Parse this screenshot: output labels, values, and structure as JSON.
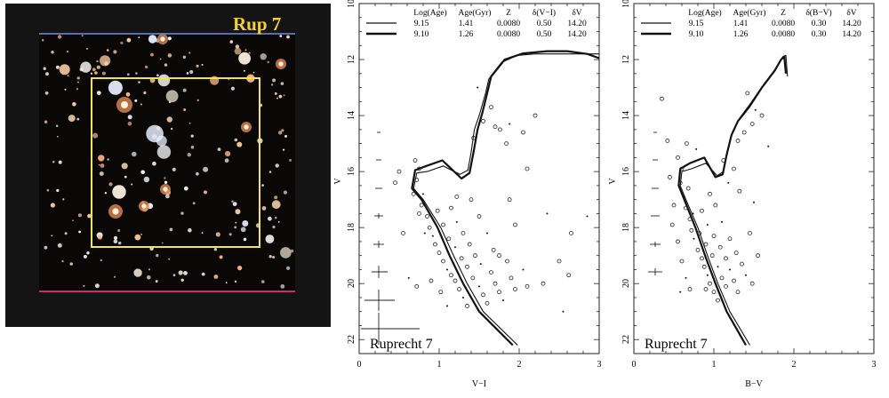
{
  "image_panel": {
    "label": "Rup 7",
    "label_color": "#f2d22e",
    "box_color": "#f2e640",
    "background": "#141414"
  },
  "cmd_panels": [
    {
      "cluster_label": "Ruprecht 7",
      "xlabel": "V−I",
      "ylabel": "V",
      "x_ticks": [
        "0",
        "1",
        "2",
        "3"
      ],
      "y_ticks": [
        "10",
        "12",
        "14",
        "16",
        "18",
        "20",
        "22"
      ],
      "legend_header": [
        "Log(Age)",
        "Age(Gyr)",
        "Z",
        "δ(V−I)",
        "δV"
      ],
      "legend_rows": [
        [
          "9.15",
          "1.41",
          "0.0080",
          "0.50",
          "14.20"
        ],
        [
          "9.10",
          "1.26",
          "0.0080",
          "0.50",
          "14.20"
        ]
      ]
    },
    {
      "cluster_label": "Ruprecht 7",
      "xlabel": "B−V",
      "ylabel": "V",
      "x_ticks": [
        "0",
        "1",
        "2",
        "3"
      ],
      "y_ticks": [
        "10",
        "12",
        "14",
        "16",
        "18",
        "20",
        "22"
      ],
      "legend_header": [
        "Log(Age)",
        "Age(Gyr)",
        "Z",
        "δ(B−V)",
        "δV"
      ],
      "legend_rows": [
        [
          "9.15",
          "1.41",
          "0.0080",
          "0.30",
          "14.20"
        ],
        [
          "9.10",
          "1.26",
          "0.0080",
          "0.30",
          "14.20"
        ]
      ]
    }
  ],
  "chart_data": [
    {
      "type": "scatter",
      "xlabel": "V−I",
      "ylabel": "V",
      "xlim": [
        0,
        3
      ],
      "ylim": [
        10,
        22.5
      ],
      "y_inverted": true,
      "series": [
        {
          "name": "9.15",
          "x": [
            1.98,
            1.55,
            1.35,
            1.18,
            1.02,
            0.8,
            0.68,
            0.72,
            0.85,
            1.05,
            1.26,
            1.36,
            1.4,
            1.44,
            1.5,
            1.58,
            1.62,
            1.78,
            1.98,
            2.2,
            2.45,
            2.7,
            3.0
          ],
          "y": [
            22.2,
            21.0,
            20.0,
            19.0,
            18.0,
            17.0,
            16.6,
            16.05,
            16.0,
            15.8,
            16.1,
            15.95,
            15.3,
            14.5,
            14.0,
            13.2,
            12.7,
            12.1,
            11.85,
            11.8,
            11.8,
            11.8,
            11.8
          ]
        },
        {
          "name": "9.10",
          "x": [
            1.92,
            1.5,
            1.3,
            1.13,
            0.98,
            0.78,
            0.66,
            0.7,
            0.84,
            1.04,
            1.28,
            1.38,
            1.43,
            1.48,
            1.54,
            1.6,
            1.65,
            1.82,
            2.05,
            2.35,
            2.6,
            2.85,
            3.0
          ],
          "y": [
            22.2,
            21.0,
            20.0,
            19.0,
            18.0,
            17.0,
            16.6,
            15.95,
            15.8,
            15.6,
            16.25,
            16.05,
            15.3,
            14.5,
            13.9,
            13.2,
            12.6,
            12.0,
            11.78,
            11.7,
            11.7,
            11.8,
            11.95
          ]
        },
        {
          "name": "stars",
          "points": [
            [
              0.7,
              15.6
            ],
            [
              0.75,
              15.9
            ],
            [
              0.72,
              16.3
            ],
            [
              0.8,
              16.8
            ],
            [
              0.78,
              17.2
            ],
            [
              0.85,
              17.6
            ],
            [
              0.88,
              18.0
            ],
            [
              0.92,
              18.3
            ],
            [
              0.95,
              18.6
            ],
            [
              1.0,
              18.9
            ],
            [
              1.05,
              19.2
            ],
            [
              1.1,
              19.5
            ],
            [
              1.15,
              19.7
            ],
            [
              1.2,
              19.9
            ],
            [
              1.25,
              20.2
            ],
            [
              1.3,
              20.5
            ],
            [
              1.35,
              20.8
            ],
            [
              0.68,
              16.8
            ],
            [
              0.75,
              17.5
            ],
            [
              0.82,
              18.2
            ],
            [
              0.98,
              17.4
            ],
            [
              1.05,
              17.9
            ],
            [
              1.12,
              18.4
            ],
            [
              1.2,
              18.7
            ],
            [
              1.28,
              19.1
            ],
            [
              1.35,
              19.4
            ],
            [
              1.42,
              19.8
            ],
            [
              1.5,
              20.1
            ],
            [
              1.55,
              20.4
            ],
            [
              1.6,
              20.7
            ],
            [
              1.15,
              17.3
            ],
            [
              1.22,
              17.8
            ],
            [
              1.3,
              18.2
            ],
            [
              1.38,
              18.6
            ],
            [
              1.45,
              19.0
            ],
            [
              1.52,
              19.3
            ],
            [
              1.65,
              19.6
            ],
            [
              1.7,
              20.0
            ],
            [
              1.75,
              20.3
            ],
            [
              1.8,
              20.6
            ],
            [
              1.85,
              19.2
            ],
            [
              1.9,
              19.8
            ],
            [
              1.95,
              20.2
            ],
            [
              2.05,
              19.5
            ],
            [
              2.1,
              20.1
            ],
            [
              1.4,
              17.0
            ],
            [
              1.5,
              17.6
            ],
            [
              1.6,
              18.2
            ],
            [
              1.68,
              18.8
            ],
            [
              1.75,
              19.0
            ],
            [
              1.02,
              20.3
            ],
            [
              1.1,
              20.8
            ],
            [
              0.9,
              19.9
            ],
            [
              0.72,
              20.1
            ],
            [
              1.22,
              16.9
            ],
            [
              1.3,
              16.2
            ],
            [
              1.43,
              14.8
            ],
            [
              1.55,
              14.2
            ],
            [
              1.65,
              13.7
            ],
            [
              1.48,
              13.0
            ],
            [
              1.7,
              14.4
            ],
            [
              1.76,
              14.5
            ],
            [
              1.84,
              15.0
            ],
            [
              1.88,
              14.3
            ],
            [
              2.05,
              14.6
            ],
            [
              2.1,
              15.9
            ],
            [
              2.2,
              14.0
            ],
            [
              2.35,
              17.5
            ],
            [
              2.5,
              19.2
            ],
            [
              2.62,
              19.7
            ],
            [
              2.65,
              18.2
            ],
            [
              2.55,
              21.0
            ],
            [
              2.3,
              20.0
            ],
            [
              1.95,
              17.9
            ],
            [
              1.88,
              17.0
            ],
            [
              0.62,
              19.8
            ],
            [
              0.55,
              18.2
            ],
            [
              0.45,
              16.4
            ],
            [
              0.5,
              16.0
            ],
            [
              2.85,
              17.6
            ]
          ]
        }
      ]
    },
    {
      "type": "scatter",
      "xlabel": "B−V",
      "ylabel": "V",
      "xlim": [
        0,
        3
      ],
      "ylim": [
        10,
        22.5
      ],
      "y_inverted": true,
      "series": [
        {
          "name": "9.15",
          "x": [
            1.45,
            1.2,
            1.05,
            0.92,
            0.8,
            0.65,
            0.58,
            0.6,
            0.72,
            0.9,
            1.04,
            1.12,
            1.17,
            1.23,
            1.32,
            1.45,
            1.62,
            1.78,
            1.86,
            1.9,
            1.92
          ],
          "y": [
            22.2,
            21.0,
            20.0,
            19.0,
            18.0,
            17.0,
            16.5,
            16.0,
            15.9,
            15.7,
            16.15,
            16.0,
            15.3,
            14.6,
            14.1,
            13.6,
            12.9,
            12.3,
            11.9,
            11.85,
            12.6
          ]
        },
        {
          "name": "9.10",
          "x": [
            1.4,
            1.16,
            1.02,
            0.89,
            0.77,
            0.63,
            0.56,
            0.58,
            0.7,
            0.88,
            1.02,
            1.11,
            1.16,
            1.22,
            1.3,
            1.44,
            1.6,
            1.76,
            1.84,
            1.88,
            1.9
          ],
          "y": [
            22.2,
            21.0,
            20.0,
            19.0,
            18.0,
            17.0,
            16.5,
            15.9,
            15.7,
            15.5,
            16.2,
            16.1,
            15.4,
            14.7,
            14.2,
            13.7,
            13.0,
            12.4,
            12.0,
            11.9,
            12.5
          ]
        },
        {
          "name": "stars",
          "points": [
            [
              0.55,
              15.5
            ],
            [
              0.6,
              15.9
            ],
            [
              0.58,
              16.4
            ],
            [
              0.62,
              16.9
            ],
            [
              0.65,
              17.3
            ],
            [
              0.7,
              17.7
            ],
            [
              0.72,
              18.1
            ],
            [
              0.75,
              18.4
            ],
            [
              0.8,
              18.8
            ],
            [
              0.85,
              19.1
            ],
            [
              0.88,
              19.4
            ],
            [
              0.92,
              19.7
            ],
            [
              0.95,
              20.0
            ],
            [
              1.0,
              20.3
            ],
            [
              0.68,
              16.6
            ],
            [
              0.74,
              17.5
            ],
            [
              0.82,
              18.2
            ],
            [
              0.9,
              18.6
            ],
            [
              0.98,
              19.0
            ],
            [
              1.05,
              19.4
            ],
            [
              1.1,
              19.8
            ],
            [
              1.15,
              20.1
            ],
            [
              0.85,
              17.4
            ],
            [
              0.92,
              17.9
            ],
            [
              1.0,
              18.3
            ],
            [
              1.08,
              18.7
            ],
            [
              1.15,
              19.1
            ],
            [
              1.2,
              19.5
            ],
            [
              1.25,
              19.9
            ],
            [
              1.3,
              20.3
            ],
            [
              0.6,
              19.2
            ],
            [
              0.65,
              19.8
            ],
            [
              0.7,
              20.2
            ],
            [
              0.95,
              16.8
            ],
            [
              1.02,
              17.2
            ],
            [
              1.1,
              17.8
            ],
            [
              1.2,
              18.4
            ],
            [
              1.28,
              18.9
            ],
            [
              1.35,
              19.3
            ],
            [
              1.4,
              19.7
            ],
            [
              0.5,
              17.2
            ],
            [
              0.45,
              16.2
            ],
            [
              0.55,
              18.5
            ],
            [
              1.18,
              16.4
            ],
            [
              1.25,
              15.9
            ],
            [
              1.3,
              14.9
            ],
            [
              1.48,
              14.3
            ],
            [
              1.52,
              13.8
            ],
            [
              1.42,
              13.2
            ],
            [
              1.38,
              14.6
            ],
            [
              1.6,
              14.0
            ],
            [
              1.68,
              15.1
            ],
            [
              0.42,
              14.9
            ],
            [
              0.35,
              13.4
            ],
            [
              0.48,
              17.9
            ],
            [
              0.58,
              20.3
            ],
            [
              1.05,
              20.6
            ],
            [
              0.9,
              20.2
            ],
            [
              1.45,
              18.2
            ],
            [
              1.5,
              17.1
            ],
            [
              1.32,
              16.7
            ],
            [
              1.55,
              19.0
            ],
            [
              1.48,
              20.0
            ],
            [
              0.78,
              15.2
            ],
            [
              0.66,
              15.0
            ],
            [
              1.12,
              15.6
            ]
          ]
        }
      ]
    }
  ]
}
